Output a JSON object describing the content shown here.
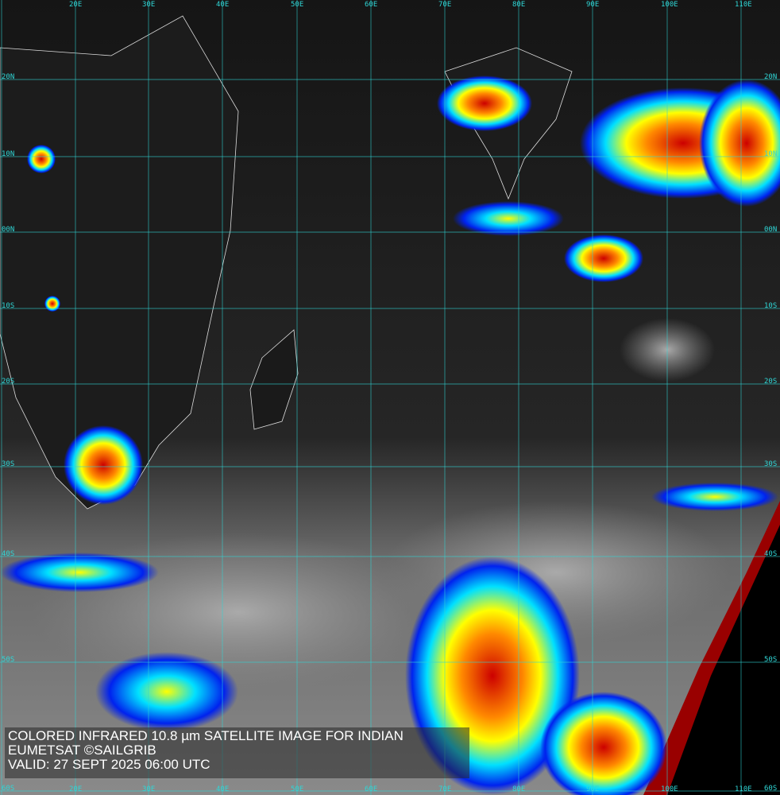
{
  "caption": {
    "line1": "COLORED INFRARED 10.8 µm SATELLITE IMAGE FOR INDIAN",
    "line2": "EUMETSAT ©SAILGRIB",
    "line3": "VALID:  27 SEPT 2025 06:00 UTC"
  },
  "grid": {
    "longitudes": [
      "20E",
      "30E",
      "40E",
      "50E",
      "60E",
      "70E",
      "80E",
      "90E",
      "100E",
      "110E"
    ],
    "latitudes": [
      "20N",
      "10N",
      "00N",
      "10S",
      "20S",
      "30S",
      "40S",
      "50S",
      "60S"
    ],
    "line_color": "#2fd6d6"
  },
  "palette": {
    "cold_high": "#cc0000",
    "orange": "#ff8800",
    "yellow": "#ffff00",
    "cyan": "#00e0ff",
    "blue": "#0022ee",
    "space": "#000000",
    "limb": "#990000"
  }
}
